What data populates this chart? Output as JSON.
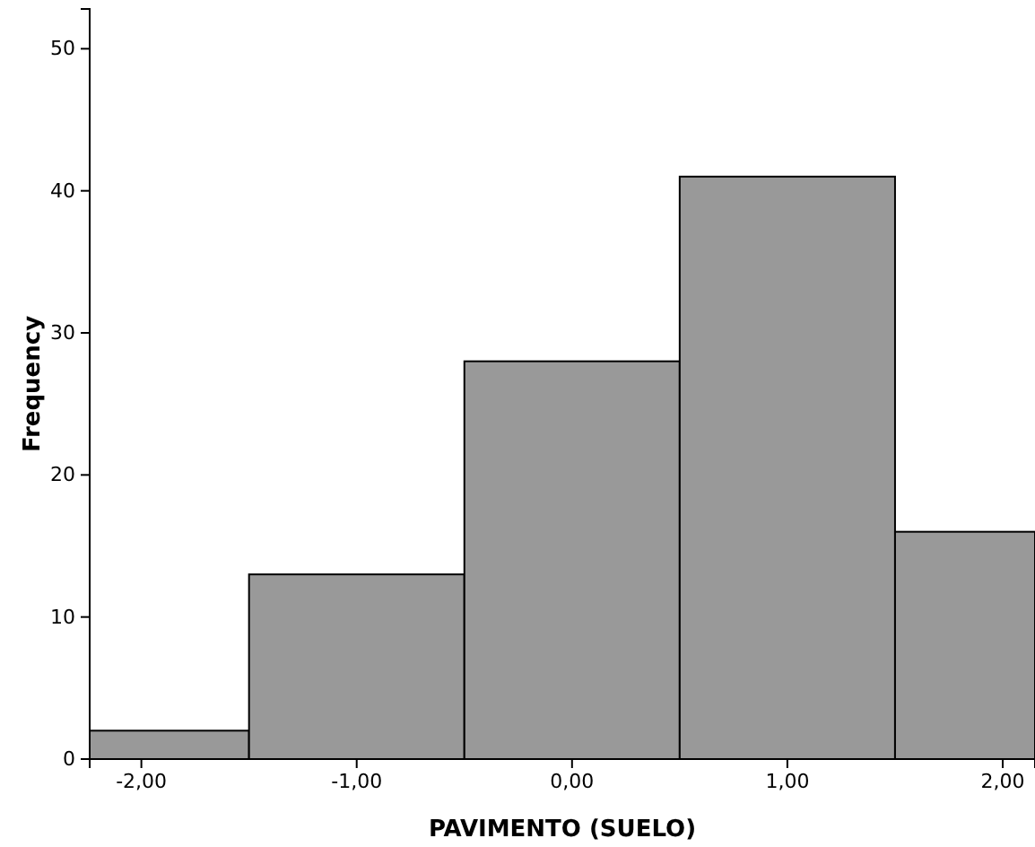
{
  "chart_data": {
    "type": "histogram",
    "xlabel": "PAVIMENTO (SUELO)",
    "ylabel": "Frequency",
    "bins": [
      -2.24,
      -1.5,
      -0.5,
      0.5,
      1.5,
      2.15
    ],
    "values": [
      2,
      13,
      28,
      41,
      16
    ],
    "color": "#999999",
    "xlim": [
      -2.24,
      2.15
    ],
    "xticks": [
      {
        "value": -2,
        "label": "-2,00"
      },
      {
        "value": -1,
        "label": "-1,00"
      },
      {
        "value": 0,
        "label": "0,00"
      },
      {
        "value": 1,
        "label": "1,00"
      },
      {
        "value": 2,
        "label": "2,00"
      }
    ],
    "ylim": [
      0,
      52.8
    ],
    "yticks": [
      0,
      10,
      20,
      30,
      40,
      50
    ],
    "grid": false
  }
}
